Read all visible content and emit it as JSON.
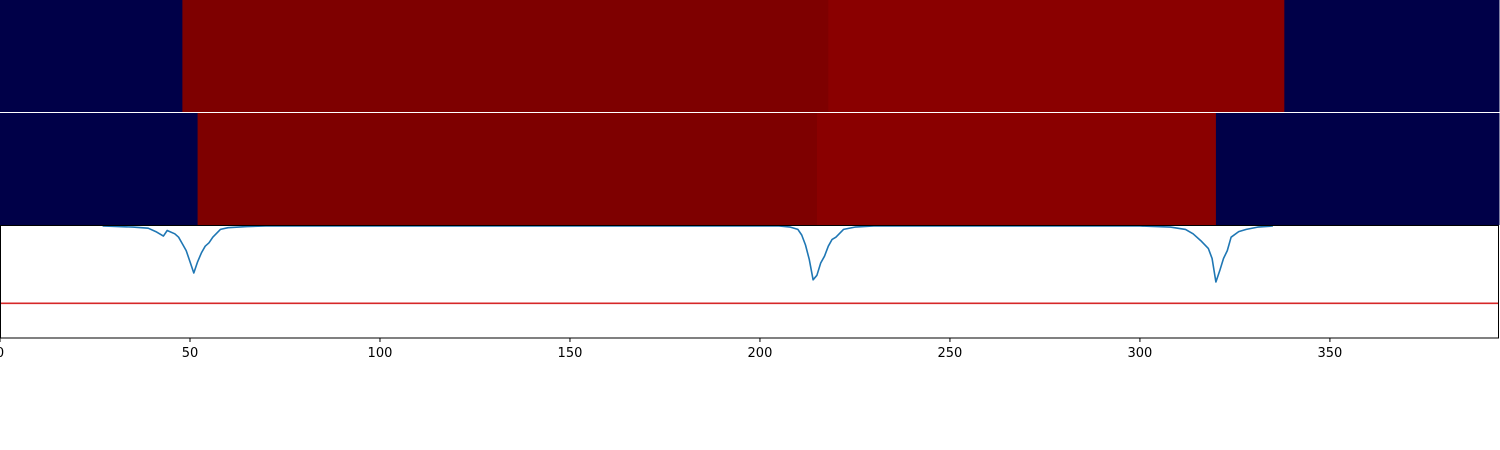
{
  "chart_data": [
    {
      "type": "heatmap",
      "xlim": [
        0,
        394.5
      ],
      "colors": {
        "low": "#000048",
        "mid": "#7e0000",
        "high": "#8a0000"
      },
      "segments": [
        {
          "x0": 0,
          "x1": 48,
          "level": "low"
        },
        {
          "x0": 48,
          "x1": 218,
          "level": "mid"
        },
        {
          "x0": 218,
          "x1": 338,
          "level": "high"
        },
        {
          "x0": 338,
          "x1": 394.5,
          "level": "low"
        }
      ]
    },
    {
      "type": "heatmap",
      "xlim": [
        0,
        394.5
      ],
      "colors": {
        "low": "#000048",
        "mid": "#7e0000",
        "high": "#8a0000"
      },
      "segments": [
        {
          "x0": 0,
          "x1": 52,
          "level": "low"
        },
        {
          "x0": 52,
          "x1": 215,
          "level": "mid"
        },
        {
          "x0": 215,
          "x1": 320,
          "level": "high"
        },
        {
          "x0": 320,
          "x1": 394.5,
          "level": "low"
        }
      ]
    },
    {
      "type": "line",
      "xlim": [
        0,
        394.5
      ],
      "ylim": [
        0,
        1
      ],
      "grid": false,
      "xticks": [
        {
          "value": 0,
          "label": "0"
        },
        {
          "value": 50,
          "label": "50"
        },
        {
          "value": 100,
          "label": "100"
        },
        {
          "value": 150,
          "label": "150"
        },
        {
          "value": 200,
          "label": "200"
        },
        {
          "value": 250,
          "label": "250"
        },
        {
          "value": 300,
          "label": "300"
        },
        {
          "value": 350,
          "label": "350"
        }
      ],
      "series": [
        {
          "color": "#1f77b4",
          "x": [
            27,
            35,
            39,
            41,
            43,
            44,
            46,
            47,
            48,
            49,
            50,
            51,
            52,
            53,
            54,
            55,
            56,
            58,
            60,
            65,
            70,
            205,
            208,
            210,
            211,
            212,
            213,
            214,
            215,
            216,
            217,
            218,
            219,
            220,
            222,
            225,
            230,
            300,
            308,
            312,
            314,
            316,
            318,
            319,
            320,
            321,
            322,
            323,
            324,
            326,
            328,
            331,
            335
          ],
          "y": [
            1.0,
            0.99,
            0.98,
            0.95,
            0.91,
            0.96,
            0.93,
            0.9,
            0.84,
            0.78,
            0.68,
            0.58,
            0.68,
            0.76,
            0.82,
            0.85,
            0.9,
            0.97,
            0.985,
            0.995,
            1.0,
            1.0,
            0.99,
            0.97,
            0.92,
            0.83,
            0.7,
            0.52,
            0.56,
            0.67,
            0.73,
            0.82,
            0.88,
            0.9,
            0.97,
            0.99,
            1.0,
            1.0,
            0.99,
            0.97,
            0.93,
            0.87,
            0.8,
            0.71,
            0.5,
            0.6,
            0.71,
            0.78,
            0.9,
            0.95,
            0.97,
            0.99,
            1.0
          ]
        },
        {
          "color": "#d62728",
          "x": [
            0,
            394.5
          ],
          "y": [
            0.31,
            0.31
          ]
        }
      ]
    }
  ]
}
